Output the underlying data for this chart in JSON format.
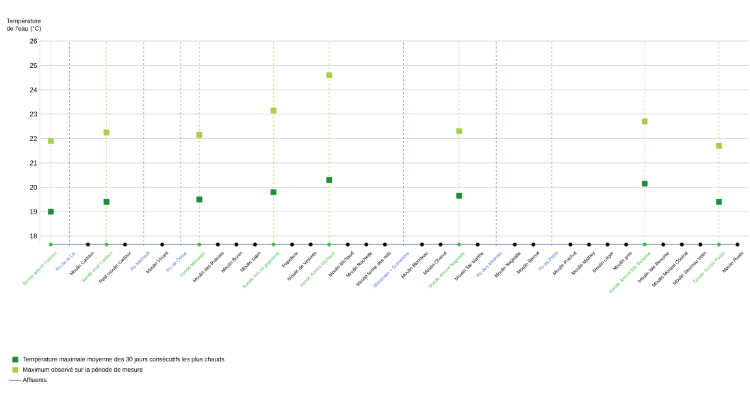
{
  "chart_data": {
    "type": "scatter",
    "ylabel": "Température de l'eau (°C)",
    "categories": [
      "Sonde amont Cadoux",
      "Ru de la Lie",
      "Moulin Cadoux",
      "Sonde aval Cadoux",
      "Petit moulin Cadoux",
      "Ru Marrault",
      "Moulin Vinant",
      "Ru de Cerce",
      "Sonde Méluzien",
      "Moulin des Ruisses",
      "Moulin Bonin",
      "Moulin sapin",
      "Sonde Amont papeterie",
      "Papeterie",
      "Moulin de Vesvres",
      "Sonde Amont Michaud",
      "Moulin Michaud",
      "Moulin Rochette",
      "Moulin ferme des nids",
      "Montmain + Grenetière",
      "Moulin Blondeau",
      "Moulin Chanut",
      "Sonde Amont Nageotte",
      "Moulin Ste Marthe",
      "Ru des Minimes",
      "Moulin Nageotte",
      "Moulin Brenot",
      "Ru du Potot",
      "Moulin Poichot",
      "Moulin Mathey",
      "Moulin Léger",
      "Moulin gros",
      "Sonde Amont Isle Beaume",
      "Moulin Isle Beaume",
      "Moulin Morizot Coutrat",
      "Moulin Seureau Velin",
      "Sonde Amont Ruats",
      "Moulin Ruats"
    ],
    "series": [
      {
        "name": "Température maximale moyenne des 30 jours consécutifs les plus chauds",
        "color": "#1e8c3a",
        "marker": "square",
        "values": [
          19.0,
          null,
          null,
          19.4,
          null,
          null,
          null,
          null,
          19.5,
          null,
          null,
          null,
          19.8,
          null,
          null,
          20.3,
          null,
          null,
          null,
          null,
          null,
          null,
          19.65,
          null,
          null,
          null,
          null,
          null,
          null,
          null,
          null,
          null,
          20.15,
          null,
          null,
          null,
          19.4,
          null
        ]
      },
      {
        "name": "Maximum observé sur la période de mesure",
        "color": "#a6cf4a",
        "marker": "square",
        "values": [
          21.9,
          null,
          null,
          22.25,
          null,
          null,
          null,
          null,
          22.15,
          null,
          null,
          null,
          23.15,
          null,
          null,
          24.6,
          null,
          null,
          null,
          null,
          null,
          null,
          22.3,
          null,
          null,
          null,
          null,
          null,
          null,
          null,
          null,
          null,
          22.7,
          null,
          null,
          null,
          21.7,
          null
        ]
      },
      {
        "name": "Affluents",
        "type": "line",
        "color": "#4a72c4",
        "marker": "none",
        "values": [
          17.65,
          17.65,
          17.65,
          17.65,
          17.65,
          17.65,
          17.65,
          17.65,
          17.65,
          17.65,
          17.65,
          17.65,
          17.65,
          17.65,
          17.65,
          17.65,
          17.65,
          17.65,
          17.65,
          17.65,
          17.65,
          17.65,
          17.65,
          17.65,
          17.65,
          17.65,
          17.65,
          17.65,
          17.65,
          17.65,
          17.65,
          17.65,
          17.65,
          17.65,
          17.65,
          17.65,
          17.65,
          17.65
        ]
      },
      {
        "type": "scatter",
        "marker": "circle",
        "color": "#000000",
        "colors": [
          "#4cb84c",
          null,
          "#000000",
          "#4cb84c",
          "#000000",
          null,
          "#000000",
          null,
          "#4cb84c",
          "#000000",
          "#000000",
          "#000000",
          "#4cb84c",
          "#000000",
          "#000000",
          "#4cb84c",
          "#000000",
          "#000000",
          "#000000",
          null,
          "#000000",
          "#000000",
          "#4cb84c",
          "#000000",
          null,
          "#000000",
          "#000000",
          null,
          "#000000",
          "#000000",
          "#000000",
          "#000000",
          "#4cb84c",
          "#000000",
          "#000000",
          "#000000",
          "#4cb84c",
          "#000000"
        ],
        "values": [
          17.65,
          null,
          17.65,
          17.65,
          17.65,
          null,
          17.65,
          null,
          17.65,
          17.65,
          17.65,
          17.65,
          17.65,
          17.65,
          17.65,
          17.65,
          17.65,
          17.65,
          17.65,
          null,
          17.65,
          17.65,
          17.65,
          17.65,
          null,
          17.65,
          17.65,
          null,
          17.65,
          17.65,
          17.65,
          17.65,
          17.65,
          17.65,
          17.65,
          17.65,
          17.65,
          17.65
        ]
      }
    ],
    "ref_lines": [
      {
        "axis": "x",
        "value": "Ru de la Lie",
        "color": "#4a72c4",
        "line_style": "dashed"
      },
      {
        "axis": "x",
        "value": "Ru Marrault",
        "color": "#4a72c4",
        "line_style": "dashed"
      },
      {
        "axis": "x",
        "value": "Ru de Cerce",
        "color": "#4a72c4",
        "line_style": "dashed"
      },
      {
        "axis": "x",
        "value": "Montmain + Grenetière",
        "color": "#4a72c4",
        "line_style": "dashed"
      },
      {
        "axis": "x",
        "value": "Ru des Minimes",
        "color": "#4a72c4",
        "line_style": "dashed"
      },
      {
        "axis": "x",
        "value": "Ru du Potot",
        "color": "#4a72c4",
        "line_style": "dashed"
      },
      {
        "axis": "x",
        "value": "Sonde amont Cadoux",
        "color": "#a6cf4a",
        "line_style": "dashed"
      },
      {
        "axis": "x",
        "value": "Sonde aval Cadoux",
        "color": "#a6cf4a",
        "line_style": "dashed"
      },
      {
        "axis": "x",
        "value": "Sonde Méluzien",
        "color": "#a6cf4a",
        "line_style": "dashed"
      },
      {
        "axis": "x",
        "value": "Sonde Amont papeterie",
        "color": "#a6cf4a",
        "line_style": "dashed"
      },
      {
        "axis": "x",
        "value": "Sonde Amont Michaud",
        "color": "#a6cf4a",
        "line_style": "dashed"
      },
      {
        "axis": "x",
        "value": "Sonde Amont Nageotte",
        "color": "#a6cf4a",
        "line_style": "dashed"
      },
      {
        "axis": "x",
        "value": "Sonde Amont Isle Beaume",
        "color": "#a6cf4a",
        "line_style": "dashed"
      },
      {
        "axis": "x",
        "value": "Sonde Amont Ruats",
        "color": "#a6cf4a",
        "line_style": "dashed"
      }
    ],
    "ylim": [
      17.6,
      26
    ],
    "yticks": [
      18,
      19,
      20,
      21,
      22,
      23,
      24,
      25,
      26
    ],
    "grid": "y",
    "legend": "bottom left"
  }
}
